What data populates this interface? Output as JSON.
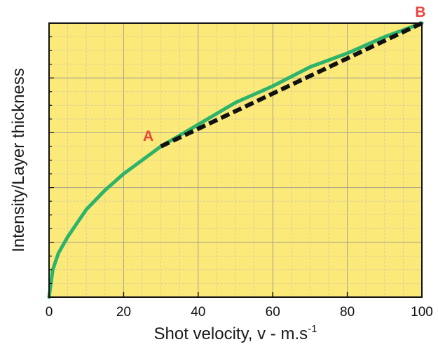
{
  "chart_data": {
    "type": "line",
    "title": "",
    "xlabel": "Shot velocity, v - m.s",
    "xlabel_superscript": "-1",
    "ylabel": "Intensity/Layer thickness",
    "xlim": [
      0,
      100
    ],
    "ylim": [
      0,
      1
    ],
    "x_ticks": [
      "0",
      "20",
      "40",
      "60",
      "80",
      "100"
    ],
    "y_ticks_labeled": false,
    "grid": true,
    "background_color": "#fbe97a",
    "series": [
      {
        "style": "solid",
        "color": "#2db36a",
        "x": [
          0,
          1,
          2.5,
          5,
          7.5,
          10,
          15,
          20,
          25,
          30,
          40,
          50,
          60,
          70,
          80,
          90,
          100
        ],
        "y": [
          0.0,
          0.1,
          0.16,
          0.22,
          0.27,
          0.32,
          0.39,
          0.45,
          0.5,
          0.55,
          0.63,
          0.71,
          0.77,
          0.84,
          0.89,
          0.95,
          1.0
        ]
      },
      {
        "style": "dashed",
        "color": "#111111",
        "x": [
          30,
          100
        ],
        "y": [
          0.55,
          1.0
        ]
      }
    ],
    "annotations": [
      {
        "label": "A",
        "x": 30,
        "y": 0.55,
        "color": "#e8453c"
      },
      {
        "label": "B",
        "x": 100,
        "y": 1.0,
        "color": "#e8453c"
      }
    ]
  }
}
